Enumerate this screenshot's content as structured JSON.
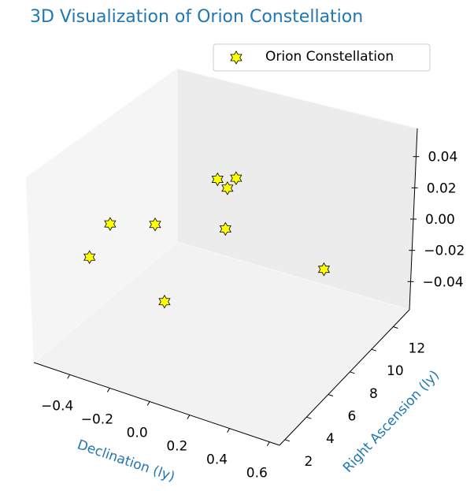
{
  "chart_data": {
    "type": "scatter3d",
    "title": "3D Visualization of Orion Constellation",
    "xlabel": "Declination (ly)",
    "ylabel": "Right Ascension (ly)",
    "series": [
      {
        "name": "Orion Constellation",
        "color": "#ffff00",
        "edgecolor": "#000000",
        "x": [
          -0.503,
          -0.335,
          -0.307,
          -0.24,
          -0.227,
          -0.05,
          -0.427,
          0.034,
          0.5
        ],
        "y": [
          6.8,
          7.78,
          12.5,
          12.97,
          12.04,
          8.99,
          3.87,
          2.43,
          8.2
        ],
        "z": [
          0,
          0,
          0,
          0,
          0,
          0,
          0,
          0,
          0
        ]
      }
    ],
    "xlim": [
      -0.58,
      0.65
    ],
    "ylim": [
      1.5,
      13.5
    ],
    "zlim": [
      -0.058,
      0.058
    ],
    "xticks": [
      {
        "value": -0.4,
        "label": "−0.4"
      },
      {
        "value": -0.2,
        "label": "−0.2"
      },
      {
        "value": 0.0,
        "label": "0.0"
      },
      0.2,
      0.4,
      0.6
    ],
    "yticks": [
      2,
      4,
      6,
      8,
      10,
      12
    ],
    "zticks": [
      {
        "value": -0.04,
        "label": "−0.04"
      },
      {
        "value": -0.02,
        "label": "−0.02"
      },
      {
        "value": 0,
        "label": "0.00"
      },
      0.02,
      0.04
    ],
    "legend": "upper right"
  }
}
